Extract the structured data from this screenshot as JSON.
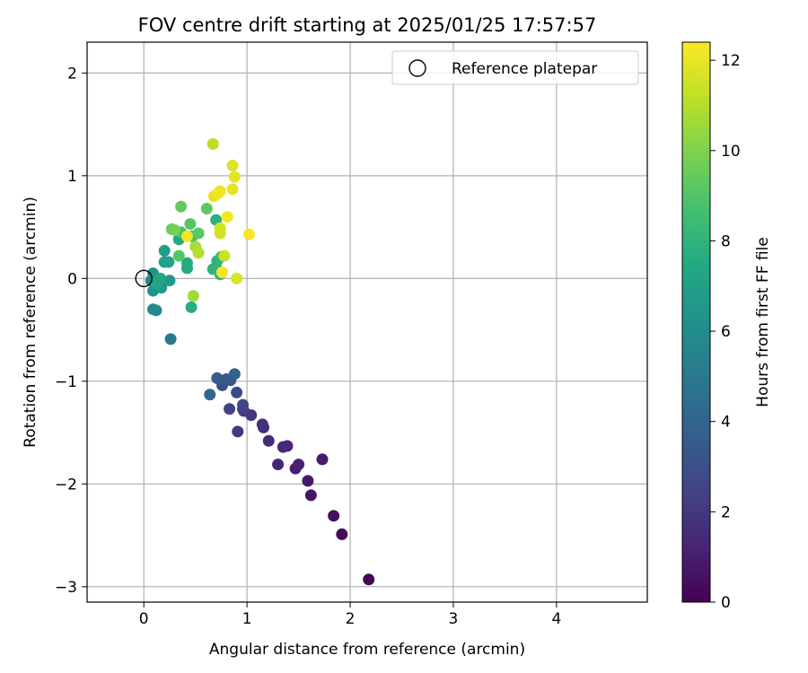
{
  "chart_data": {
    "type": "scatter",
    "title": "FOV centre drift starting at 2025/01/25 17:57:57",
    "xlabel": "Angular distance from reference (arcmin)",
    "ylabel": "Rotation from reference (arcmin)",
    "xlim": [
      -0.55,
      4.88
    ],
    "ylim": [
      -3.15,
      2.3
    ],
    "xticks": [
      0,
      1,
      2,
      3,
      4
    ],
    "yticks": [
      2,
      1,
      0,
      -1,
      -2,
      -3
    ],
    "xtick_labels": [
      "0",
      "1",
      "2",
      "3",
      "4"
    ],
    "ytick_labels": [
      "2",
      "1",
      "0",
      "−1",
      "−2",
      "−3"
    ],
    "grid": true,
    "legend": {
      "position": "top-right",
      "entries": [
        "Reference platepar"
      ]
    },
    "reference_point": {
      "x": 0,
      "y": 0
    },
    "colorbar": {
      "label": "Hours from first FF file",
      "range": [
        0,
        12.4
      ],
      "ticks": [
        0,
        2,
        4,
        6,
        8,
        10,
        12
      ],
      "tick_labels": [
        "0",
        "2",
        "4",
        "6",
        "8",
        "10",
        "12"
      ],
      "colormap": "viridis"
    },
    "points": [
      {
        "x": 2.18,
        "y": -2.93,
        "t": 0.1
      },
      {
        "x": 1.92,
        "y": -2.49,
        "t": 0.3
      },
      {
        "x": 1.84,
        "y": -2.31,
        "t": 0.5
      },
      {
        "x": 1.62,
        "y": -2.11,
        "t": 0.7
      },
      {
        "x": 1.59,
        "y": -1.97,
        "t": 0.8
      },
      {
        "x": 1.73,
        "y": -1.76,
        "t": 0.9
      },
      {
        "x": 1.47,
        "y": -1.85,
        "t": 1.0
      },
      {
        "x": 1.5,
        "y": -1.81,
        "t": 1.1
      },
      {
        "x": 1.3,
        "y": -1.81,
        "t": 1.2
      },
      {
        "x": 1.39,
        "y": -1.63,
        "t": 1.3
      },
      {
        "x": 1.35,
        "y": -1.64,
        "t": 1.4
      },
      {
        "x": 1.21,
        "y": -1.58,
        "t": 1.5
      },
      {
        "x": 1.16,
        "y": -1.45,
        "t": 1.6
      },
      {
        "x": 1.15,
        "y": -1.42,
        "t": 1.7
      },
      {
        "x": 1.04,
        "y": -1.33,
        "t": 1.9
      },
      {
        "x": 0.97,
        "y": -1.29,
        "t": 2.0
      },
      {
        "x": 0.91,
        "y": -1.49,
        "t": 2.1
      },
      {
        "x": 0.96,
        "y": -1.27,
        "t": 2.3
      },
      {
        "x": 0.83,
        "y": -1.27,
        "t": 2.4
      },
      {
        "x": 0.96,
        "y": -1.23,
        "t": 2.6
      },
      {
        "x": 0.9,
        "y": -1.11,
        "t": 2.8
      },
      {
        "x": 0.76,
        "y": -1.04,
        "t": 3.0
      },
      {
        "x": 0.84,
        "y": -0.99,
        "t": 3.2
      },
      {
        "x": 0.8,
        "y": -0.98,
        "t": 3.4
      },
      {
        "x": 0.71,
        "y": -0.97,
        "t": 3.6
      },
      {
        "x": 0.88,
        "y": -0.93,
        "t": 3.8
      },
      {
        "x": 0.64,
        "y": -1.13,
        "t": 4.1
      },
      {
        "x": 0.26,
        "y": -0.59,
        "t": 5.0
      },
      {
        "x": 0.12,
        "y": -0.31,
        "t": 5.6
      },
      {
        "x": 0.09,
        "y": -0.3,
        "t": 5.8
      },
      {
        "x": 0.09,
        "y": -0.12,
        "t": 6.2
      },
      {
        "x": 0.07,
        "y": -0.02,
        "t": 6.0
      },
      {
        "x": 0.09,
        "y": 0.05,
        "t": 6.3
      },
      {
        "x": 0.17,
        "y": -0.09,
        "t": 6.5
      },
      {
        "x": 0.14,
        "y": -0.01,
        "t": 6.6
      },
      {
        "x": 0.25,
        "y": -0.02,
        "t": 6.7
      },
      {
        "x": 0.2,
        "y": 0.27,
        "t": 6.8
      },
      {
        "x": 0.2,
        "y": 0.16,
        "t": 7.0
      },
      {
        "x": 0.24,
        "y": 0.16,
        "t": 7.1
      },
      {
        "x": 0.16,
        "y": 0.0,
        "t": 7.3
      },
      {
        "x": 0.12,
        "y": -0.05,
        "t": 7.2
      },
      {
        "x": 0.34,
        "y": 0.38,
        "t": 7.4
      },
      {
        "x": 0.42,
        "y": 0.1,
        "t": 7.5
      },
      {
        "x": 0.42,
        "y": 0.15,
        "t": 7.6
      },
      {
        "x": 0.46,
        "y": -0.28,
        "t": 7.7
      },
      {
        "x": 0.7,
        "y": 0.57,
        "t": 7.8
      },
      {
        "x": 0.71,
        "y": 0.17,
        "t": 7.9
      },
      {
        "x": 0.67,
        "y": 0.09,
        "t": 8.0
      },
      {
        "x": 0.72,
        "y": 0.08,
        "t": 8.1
      },
      {
        "x": 0.74,
        "y": 0.04,
        "t": 8.2
      },
      {
        "x": 0.75,
        "y": 0.21,
        "t": 8.3
      },
      {
        "x": 0.47,
        "y": 0.41,
        "t": 8.6
      },
      {
        "x": 0.36,
        "y": 0.45,
        "t": 8.8
      },
      {
        "x": 0.34,
        "y": 0.22,
        "t": 9.0
      },
      {
        "x": 0.45,
        "y": 0.53,
        "t": 9.1
      },
      {
        "x": 0.53,
        "y": 0.44,
        "t": 9.2
      },
      {
        "x": 0.61,
        "y": 0.68,
        "t": 9.3
      },
      {
        "x": 0.36,
        "y": 0.7,
        "t": 9.4
      },
      {
        "x": 0.27,
        "y": 0.48,
        "t": 9.6
      },
      {
        "x": 0.3,
        "y": 0.47,
        "t": 9.8
      },
      {
        "x": 0.48,
        "y": -0.17,
        "t": 10.6
      },
      {
        "x": 0.5,
        "y": 0.31,
        "t": 10.8
      },
      {
        "x": 0.53,
        "y": 0.25,
        "t": 11.0
      },
      {
        "x": 0.67,
        "y": 1.31,
        "t": 11.2
      },
      {
        "x": 0.78,
        "y": 0.22,
        "t": 11.4
      },
      {
        "x": 0.74,
        "y": 0.44,
        "t": 11.5
      },
      {
        "x": 0.74,
        "y": 0.49,
        "t": 11.6
      },
      {
        "x": 0.9,
        "y": 0.0,
        "t": 11.7
      },
      {
        "x": 0.86,
        "y": 1.1,
        "t": 11.8
      },
      {
        "x": 0.88,
        "y": 0.99,
        "t": 11.9
      },
      {
        "x": 0.86,
        "y": 0.87,
        "t": 12.0
      },
      {
        "x": 0.68,
        "y": 0.8,
        "t": 12.0
      },
      {
        "x": 0.72,
        "y": 0.83,
        "t": 12.1
      },
      {
        "x": 0.74,
        "y": 0.85,
        "t": 12.1
      },
      {
        "x": 0.81,
        "y": 0.6,
        "t": 12.2
      },
      {
        "x": 0.42,
        "y": 0.41,
        "t": 12.2
      },
      {
        "x": 0.76,
        "y": 0.06,
        "t": 12.3
      },
      {
        "x": 1.02,
        "y": 0.43,
        "t": 12.3
      }
    ]
  }
}
